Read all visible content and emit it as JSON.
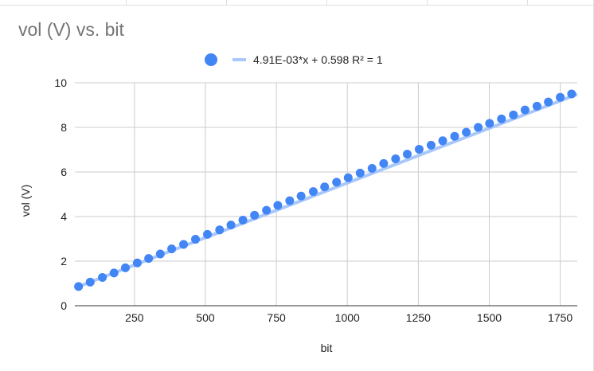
{
  "chart_data": {
    "type": "scatter",
    "title": "vol (V) vs. bit",
    "xlabel": "bit",
    "ylabel": "vol (V)",
    "xlim": [
      40,
      1810
    ],
    "ylim": [
      0,
      10
    ],
    "x_ticks": [
      250,
      500,
      750,
      1000,
      1250,
      1500,
      1750
    ],
    "y_ticks": [
      0,
      2,
      4,
      6,
      8,
      10
    ],
    "grid": true,
    "legend_position": "top",
    "series": [
      {
        "color": "#4285f4",
        "x": [
          53,
          94,
          137,
          178,
          218,
          260,
          300,
          341,
          381,
          423,
          465,
          507,
          550,
          590,
          632,
          673,
          715,
          755,
          797,
          837,
          880,
          920,
          962,
          1003,
          1045,
          1087,
          1128,
          1170,
          1211,
          1253,
          1295,
          1336,
          1378,
          1419,
          1461,
          1501,
          1543,
          1585,
          1626,
          1668,
          1708,
          1750,
          1790
        ],
        "y": [
          0.86,
          1.06,
          1.27,
          1.47,
          1.7,
          1.92,
          2.12,
          2.32,
          2.55,
          2.75,
          2.98,
          3.2,
          3.4,
          3.62,
          3.84,
          4.06,
          4.28,
          4.5,
          4.71,
          4.92,
          5.12,
          5.33,
          5.54,
          5.74,
          5.95,
          6.16,
          6.38,
          6.59,
          6.8,
          7.02,
          7.2,
          7.4,
          7.6,
          7.78,
          8.0,
          8.18,
          8.38,
          8.56,
          8.78,
          8.95,
          9.14,
          9.35,
          9.5
        ]
      }
    ],
    "trendline": {
      "label": "4.91E-03*x + 0.598 R² = 1",
      "slope": 0.00491,
      "intercept": 0.598,
      "color": "#a8c7fa"
    }
  }
}
